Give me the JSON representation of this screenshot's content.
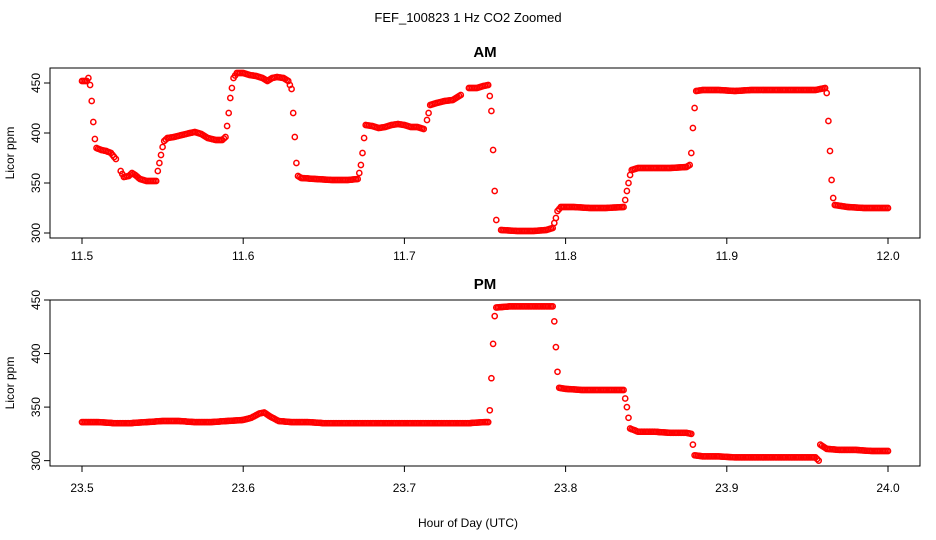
{
  "figure": {
    "title": "FEF_100823  1 Hz CO2 Zoomed",
    "xlabel": "Hour of Day (UTC)"
  },
  "colors": {
    "points": "#ff0000",
    "axes": "#000000",
    "background": "#ffffff"
  },
  "chart_data": [
    {
      "type": "scatter",
      "title": "AM",
      "xlabel": "",
      "ylabel": "Licor ppm",
      "xlim": [
        11.5,
        12.0
      ],
      "ylim": [
        295,
        465
      ],
      "xticks": [
        "11.5",
        "11.6",
        "11.7",
        "11.8",
        "11.9",
        "12.0"
      ],
      "yticks": [
        "300",
        "350",
        "400",
        "450"
      ],
      "grid": false,
      "legend": "none",
      "series": [
        {
          "marker": "open-circle",
          "color": "#ff0000",
          "points": [
            [
              11.5,
              452
            ],
            [
              11.503,
              452
            ],
            [
              11.504,
              455
            ],
            [
              11.505,
              448
            ],
            [
              11.506,
              432
            ],
            [
              11.507,
              411
            ],
            [
              11.508,
              394
            ],
            [
              11.509,
              385
            ],
            [
              11.512,
              383
            ],
            [
              11.515,
              382
            ],
            [
              11.518,
              380
            ],
            [
              11.521,
              374
            ],
            [
              11.524,
              362
            ],
            [
              11.526,
              356
            ],
            [
              11.529,
              357
            ],
            [
              11.531,
              360
            ],
            [
              11.533,
              358
            ],
            [
              11.536,
              354
            ],
            [
              11.54,
              352
            ],
            [
              11.544,
              352
            ],
            [
              11.546,
              352
            ],
            [
              11.547,
              362
            ],
            [
              11.548,
              370
            ],
            [
              11.549,
              378
            ],
            [
              11.55,
              386
            ],
            [
              11.551,
              392
            ],
            [
              11.553,
              395
            ],
            [
              11.557,
              396
            ],
            [
              11.562,
              398
            ],
            [
              11.567,
              400
            ],
            [
              11.57,
              401
            ],
            [
              11.574,
              399
            ],
            [
              11.578,
              395
            ],
            [
              11.583,
              393
            ],
            [
              11.587,
              393
            ],
            [
              11.589,
              396
            ],
            [
              11.59,
              407
            ],
            [
              11.591,
              420
            ],
            [
              11.592,
              435
            ],
            [
              11.593,
              445
            ],
            [
              11.594,
              455
            ],
            [
              11.596,
              460
            ],
            [
              11.6,
              460
            ],
            [
              11.604,
              458
            ],
            [
              11.608,
              457
            ],
            [
              11.612,
              455
            ],
            [
              11.615,
              452
            ],
            [
              11.618,
              455
            ],
            [
              11.621,
              456
            ],
            [
              11.625,
              455
            ],
            [
              11.628,
              452
            ],
            [
              11.629,
              448
            ],
            [
              11.63,
              444
            ],
            [
              11.631,
              420
            ],
            [
              11.632,
              396
            ],
            [
              11.633,
              370
            ],
            [
              11.634,
              357
            ],
            [
              11.636,
              355
            ],
            [
              11.645,
              354
            ],
            [
              11.655,
              353
            ],
            [
              11.665,
              353
            ],
            [
              11.671,
              354
            ],
            [
              11.672,
              360
            ],
            [
              11.673,
              368
            ],
            [
              11.674,
              380
            ],
            [
              11.675,
              395
            ],
            [
              11.676,
              408
            ],
            [
              11.68,
              407
            ],
            [
              11.684,
              405
            ],
            [
              11.688,
              406
            ],
            [
              11.692,
              408
            ],
            [
              11.696,
              409
            ],
            [
              11.7,
              408
            ],
            [
              11.704,
              406
            ],
            [
              11.708,
              406
            ],
            [
              11.712,
              404
            ],
            [
              11.714,
              413
            ],
            [
              11.715,
              420
            ],
            [
              11.716,
              428
            ],
            [
              11.72,
              430
            ],
            [
              11.725,
              432
            ],
            [
              11.73,
              433
            ],
            [
              11.735,
              438
            ],
            [
              11.74,
              445
            ],
            [
              11.745,
              445
            ],
            [
              11.749,
              447
            ],
            [
              11.752,
              448
            ],
            [
              11.753,
              437
            ],
            [
              11.754,
              422
            ],
            [
              11.755,
              383
            ],
            [
              11.756,
              342
            ],
            [
              11.757,
              313
            ],
            [
              11.76,
              303
            ],
            [
              11.77,
              302
            ],
            [
              11.78,
              302
            ],
            [
              11.788,
              303
            ],
            [
              11.792,
              305
            ],
            [
              11.793,
              310
            ],
            [
              11.794,
              315
            ],
            [
              11.795,
              322
            ],
            [
              11.797,
              326
            ],
            [
              11.805,
              326
            ],
            [
              11.815,
              325
            ],
            [
              11.825,
              325
            ],
            [
              11.836,
              326
            ],
            [
              11.837,
              333
            ],
            [
              11.838,
              342
            ],
            [
              11.839,
              350
            ],
            [
              11.84,
              358
            ],
            [
              11.841,
              363
            ],
            [
              11.845,
              365
            ],
            [
              11.855,
              365
            ],
            [
              11.865,
              365
            ],
            [
              11.875,
              366
            ],
            [
              11.877,
              368
            ],
            [
              11.878,
              380
            ],
            [
              11.879,
              405
            ],
            [
              11.88,
              425
            ],
            [
              11.881,
              442
            ],
            [
              11.885,
              443
            ],
            [
              11.895,
              443
            ],
            [
              11.905,
              442
            ],
            [
              11.915,
              443
            ],
            [
              11.925,
              443
            ],
            [
              11.935,
              443
            ],
            [
              11.945,
              443
            ],
            [
              11.955,
              443
            ],
            [
              11.961,
              445
            ],
            [
              11.962,
              440
            ],
            [
              11.963,
              412
            ],
            [
              11.964,
              382
            ],
            [
              11.965,
              353
            ],
            [
              11.966,
              335
            ],
            [
              11.967,
              328
            ],
            [
              11.975,
              326
            ],
            [
              11.985,
              325
            ],
            [
              11.995,
              325
            ],
            [
              12.0,
              325
            ]
          ]
        }
      ]
    },
    {
      "type": "scatter",
      "title": "PM",
      "xlabel": "Hour of Day (UTC)",
      "ylabel": "Licor ppm",
      "xlim": [
        23.5,
        24.0
      ],
      "ylim": [
        295,
        450
      ],
      "xticks": [
        "23.5",
        "23.6",
        "23.7",
        "23.8",
        "23.9",
        "24.0"
      ],
      "yticks": [
        "300",
        "350",
        "400",
        "450"
      ],
      "grid": false,
      "legend": "none",
      "series": [
        {
          "marker": "open-circle",
          "color": "#ff0000",
          "points": [
            [
              23.5,
              336
            ],
            [
              23.51,
              336
            ],
            [
              23.52,
              335
            ],
            [
              23.53,
              335
            ],
            [
              23.54,
              336
            ],
            [
              23.55,
              337
            ],
            [
              23.56,
              337
            ],
            [
              23.57,
              336
            ],
            [
              23.58,
              336
            ],
            [
              23.59,
              337
            ],
            [
              23.6,
              338
            ],
            [
              23.605,
              340
            ],
            [
              23.61,
              344
            ],
            [
              23.613,
              345
            ],
            [
              23.617,
              341
            ],
            [
              23.622,
              337
            ],
            [
              23.63,
              336
            ],
            [
              23.64,
              336
            ],
            [
              23.65,
              335
            ],
            [
              23.66,
              335
            ],
            [
              23.67,
              335
            ],
            [
              23.68,
              335
            ],
            [
              23.69,
              335
            ],
            [
              23.7,
              335
            ],
            [
              23.71,
              335
            ],
            [
              23.72,
              335
            ],
            [
              23.73,
              335
            ],
            [
              23.74,
              335
            ],
            [
              23.75,
              336
            ],
            [
              23.752,
              336
            ],
            [
              23.753,
              347
            ],
            [
              23.754,
              377
            ],
            [
              23.755,
              409
            ],
            [
              23.756,
              435
            ],
            [
              23.757,
              443
            ],
            [
              23.765,
              444
            ],
            [
              23.775,
              444
            ],
            [
              23.785,
              444
            ],
            [
              23.792,
              444
            ],
            [
              23.793,
              430
            ],
            [
              23.794,
              406
            ],
            [
              23.795,
              383
            ],
            [
              23.796,
              368
            ],
            [
              23.8,
              367
            ],
            [
              23.81,
              366
            ],
            [
              23.82,
              366
            ],
            [
              23.83,
              366
            ],
            [
              23.836,
              366
            ],
            [
              23.837,
              358
            ],
            [
              23.838,
              350
            ],
            [
              23.839,
              340
            ],
            [
              23.84,
              330
            ],
            [
              23.845,
              327
            ],
            [
              23.855,
              327
            ],
            [
              23.865,
              326
            ],
            [
              23.875,
              326
            ],
            [
              23.878,
              325
            ],
            [
              23.879,
              315
            ],
            [
              23.88,
              305
            ],
            [
              23.885,
              304
            ],
            [
              23.895,
              304
            ],
            [
              23.905,
              303
            ],
            [
              23.915,
              303
            ],
            [
              23.925,
              303
            ],
            [
              23.935,
              303
            ],
            [
              23.945,
              303
            ],
            [
              23.955,
              303
            ],
            [
              23.957,
              300
            ],
            [
              23.958,
              315
            ],
            [
              23.96,
              313
            ],
            [
              23.962,
              311
            ],
            [
              23.97,
              310
            ],
            [
              23.98,
              310
            ],
            [
              23.99,
              309
            ],
            [
              24.0,
              309
            ]
          ]
        }
      ]
    }
  ]
}
